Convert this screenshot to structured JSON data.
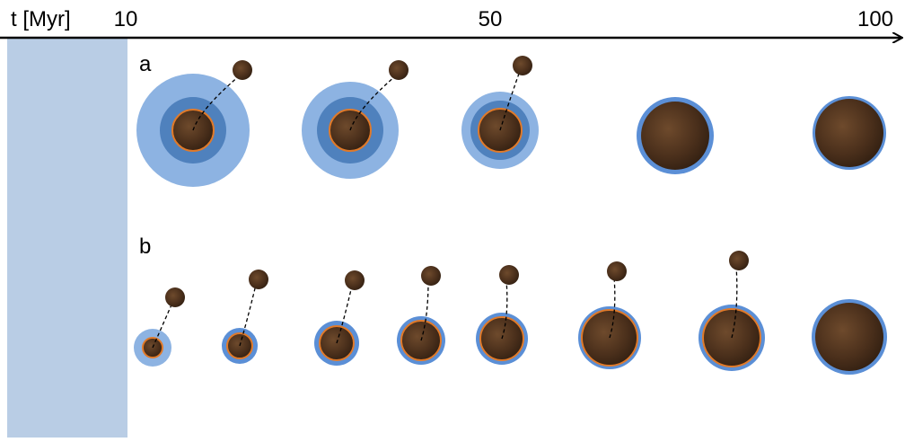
{
  "axis": {
    "label": "t [Myr]",
    "ticks": [
      "10",
      "50",
      "100"
    ]
  },
  "rows": [
    {
      "label": "a"
    },
    {
      "label": "b"
    }
  ]
}
